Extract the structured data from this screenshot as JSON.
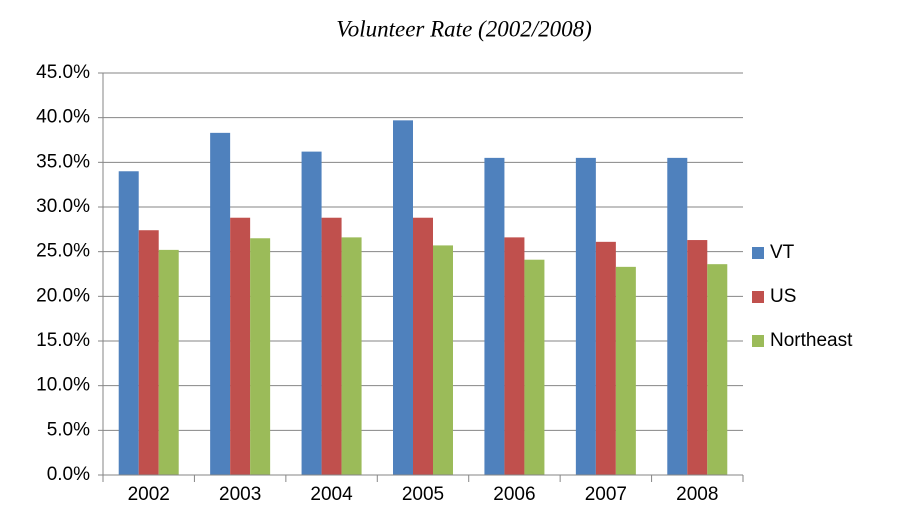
{
  "chart_data": {
    "type": "bar",
    "title": "Volunteer Rate (2002/2008)",
    "categories": [
      "2002",
      "2003",
      "2004",
      "2005",
      "2006",
      "2007",
      "2008"
    ],
    "series": [
      {
        "name": "VT",
        "color": "#4f81bd",
        "values": [
          34.0,
          38.3,
          36.2,
          39.7,
          35.5,
          35.5,
          35.5
        ]
      },
      {
        "name": "US",
        "color": "#c0504d",
        "values": [
          27.4,
          28.8,
          28.8,
          28.8,
          26.6,
          26.1,
          26.3
        ]
      },
      {
        "name": "Northeast",
        "color": "#9bbb59",
        "values": [
          25.2,
          26.5,
          26.6,
          25.7,
          24.1,
          23.3,
          23.6
        ]
      }
    ],
    "ylim": [
      0,
      45
    ],
    "yticks": [
      {
        "value": 0,
        "label": "0.0%"
      },
      {
        "value": 5,
        "label": "5.0%"
      },
      {
        "value": 10,
        "label": "10.0%"
      },
      {
        "value": 15,
        "label": "15.0%"
      },
      {
        "value": 20,
        "label": "20.0%"
      },
      {
        "value": 25,
        "label": "25.0%"
      },
      {
        "value": 30,
        "label": "30.0%"
      },
      {
        "value": 35,
        "label": "35.0%"
      },
      {
        "value": 40,
        "label": "40.0%"
      },
      {
        "value": 45,
        "label": "45.0%"
      }
    ],
    "grid": true,
    "legend": "right"
  }
}
